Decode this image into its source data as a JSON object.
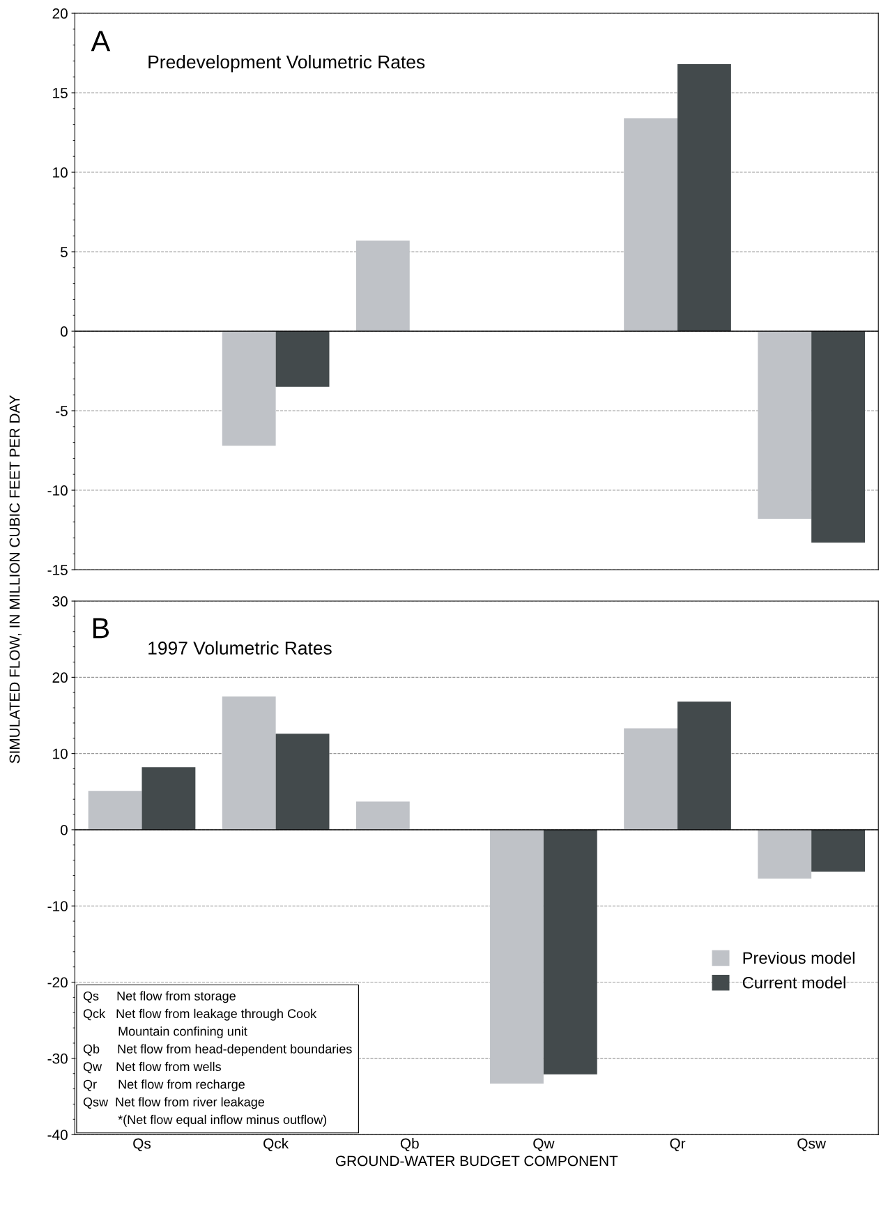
{
  "chart_data": [
    {
      "type": "bar",
      "title": "A",
      "subtitle": "Predevelopment Volumetric Rates",
      "ylabel": "SIMULATED FLOW, IN MILLION CUBIC FEET PER DAY",
      "categories": [
        null,
        null,
        null,
        null,
        null,
        null
      ],
      "series": [
        {
          "color": "#bfc2c7",
          "values": [
            null,
            -7.2,
            5.7,
            null,
            13.4,
            -11.8
          ]
        },
        {
          "color": "#434a4c",
          "values": [
            null,
            -3.5,
            0,
            null,
            16.8,
            -13.3
          ]
        }
      ],
      "ylim": [
        -15,
        20
      ],
      "yticks": [
        -15,
        -10,
        -5,
        0,
        5,
        10,
        15,
        20
      ],
      "grid": "y",
      "legend": false,
      "tick_labels": "y"
    },
    {
      "type": "bar",
      "title": "B",
      "subtitle": "1997 Volumetric Rates",
      "xlabel": "GROUND-WATER BUDGET COMPONENT",
      "categories": [
        "Qs",
        "Qck",
        "Qb",
        "Qw",
        "Qr",
        "Qsw"
      ],
      "series": [
        {
          "name": "Previous model",
          "color": "#bfc2c7",
          "values": [
            5.1,
            17.5,
            3.7,
            -33.3,
            13.3,
            -6.4
          ]
        },
        {
          "name": "Current model",
          "color": "#434a4c",
          "values": [
            8.2,
            12.6,
            0,
            -32.1,
            16.8,
            -5.5
          ]
        }
      ],
      "ylim": [
        -40,
        30
      ],
      "yticks": [
        -40,
        -30,
        -20,
        -10,
        0,
        10,
        20,
        30
      ],
      "grid": "y",
      "legend": "bottom right",
      "annotations": [
        "Qs     Net flow from storage",
        "Qck   Net flow from leakage through Cook",
        "          Mountain confining unit",
        "Qb     Net flow from head-dependent boundaries",
        "Qw    Net flow from wells",
        "Qr      Net flow from recharge",
        "Qsw  Net flow from river leakage",
        "          *(Net flow equal inflow minus outflow)"
      ]
    }
  ]
}
